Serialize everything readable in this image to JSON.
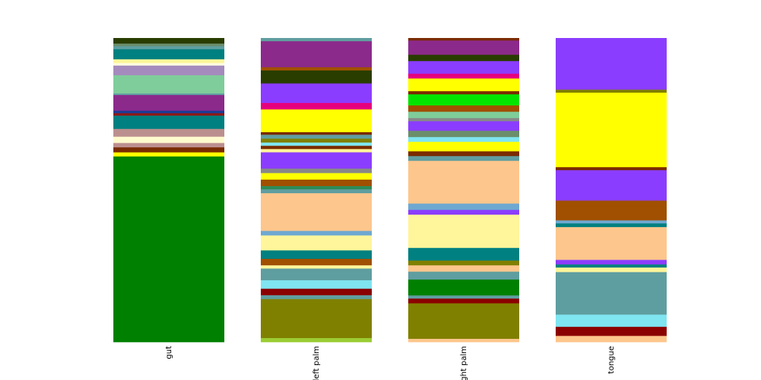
{
  "chart_data": {
    "type": "bar",
    "stacked": true,
    "normalized": true,
    "axes_visible": false,
    "grid": false,
    "legend": "none",
    "categories": [
      "gut",
      "left palm",
      "right palm",
      "tongue"
    ],
    "bars": [
      {
        "label": "gut",
        "segments": [
          {
            "color": "#2a3d00",
            "value": 0.018
          },
          {
            "color": "#6b8e6b",
            "value": 0.008
          },
          {
            "color": "#5f9ea0",
            "value": 0.01
          },
          {
            "color": "#008080",
            "value": 0.032
          },
          {
            "color": "#fff59a",
            "value": 0.012
          },
          {
            "color": "#fdfde0",
            "value": 0.008
          },
          {
            "color": "#a58bbd",
            "value": 0.031
          },
          {
            "color": "#7fcd9a",
            "value": 0.058
          },
          {
            "color": "#5f9ea0",
            "value": 0.005
          },
          {
            "color": "#8b2a8b",
            "value": 0.05
          },
          {
            "color": "#1f3a93",
            "value": 0.008
          },
          {
            "color": "#8b1a1a",
            "value": 0.008
          },
          {
            "color": "#008080",
            "value": 0.042
          },
          {
            "color": "#bc8f8f",
            "value": 0.025
          },
          {
            "color": "#fffacd",
            "value": 0.02
          },
          {
            "color": "#bc8f8f",
            "value": 0.014
          },
          {
            "color": "#7a2b00",
            "value": 0.016
          },
          {
            "color": "#ffff00",
            "value": 0.013
          },
          {
            "color": "#008000",
            "value": 0.592
          }
        ]
      },
      {
        "label": "left palm",
        "segments": [
          {
            "color": "#5f9ea0",
            "value": 0.01
          },
          {
            "color": "#8b2a8b",
            "value": 0.08
          },
          {
            "color": "#a05000",
            "value": 0.01
          },
          {
            "color": "#2a3d00",
            "value": 0.04
          },
          {
            "color": "#8b3dff",
            "value": 0.06
          },
          {
            "color": "#e6007e",
            "value": 0.02
          },
          {
            "color": "#ffff00",
            "value": 0.07
          },
          {
            "color": "#7a2b00",
            "value": 0.008
          },
          {
            "color": "#5f9ea0",
            "value": 0.012
          },
          {
            "color": "#808000",
            "value": 0.012
          },
          {
            "color": "#7fe5f0",
            "value": 0.01
          },
          {
            "color": "#7a2b00",
            "value": 0.01
          },
          {
            "color": "#fff59a",
            "value": 0.01
          },
          {
            "color": "#8b3dff",
            "value": 0.05
          },
          {
            "color": "#888888",
            "value": 0.014
          },
          {
            "color": "#ffff00",
            "value": 0.02
          },
          {
            "color": "#a05000",
            "value": 0.02
          },
          {
            "color": "#2e8b57",
            "value": 0.01
          },
          {
            "color": "#5f9ea0",
            "value": 0.012
          },
          {
            "color": "#fdc68c",
            "value": 0.116
          },
          {
            "color": "#6ea8d0",
            "value": 0.014
          },
          {
            "color": "#fff59a",
            "value": 0.046
          },
          {
            "color": "#008080",
            "value": 0.026
          },
          {
            "color": "#a05000",
            "value": 0.02
          },
          {
            "color": "#fff59a",
            "value": 0.01
          },
          {
            "color": "#5f9ea0",
            "value": 0.036
          },
          {
            "color": "#7fe5f0",
            "value": 0.026
          },
          {
            "color": "#8b0000",
            "value": 0.02
          },
          {
            "color": "#5f9ea0",
            "value": 0.012
          },
          {
            "color": "#808000",
            "value": 0.12
          },
          {
            "color": "#9acd32",
            "value": 0.012
          }
        ]
      },
      {
        "label": "right palm",
        "segments": [
          {
            "color": "#7a2b00",
            "value": 0.008
          },
          {
            "color": "#8b2a8b",
            "value": 0.045
          },
          {
            "color": "#2a3d00",
            "value": 0.02
          },
          {
            "color": "#8b3dff",
            "value": 0.04
          },
          {
            "color": "#e6007e",
            "value": 0.015
          },
          {
            "color": "#ffff00",
            "value": 0.04
          },
          {
            "color": "#7a2b00",
            "value": 0.01
          },
          {
            "color": "#00e600",
            "value": 0.035
          },
          {
            "color": "#a05000",
            "value": 0.02
          },
          {
            "color": "#7fcd9a",
            "value": 0.02
          },
          {
            "color": "#888888",
            "value": 0.01
          },
          {
            "color": "#8b3dff",
            "value": 0.03
          },
          {
            "color": "#6b8e6b",
            "value": 0.02
          },
          {
            "color": "#7fe5f0",
            "value": 0.015
          },
          {
            "color": "#ffff00",
            "value": 0.03
          },
          {
            "color": "#7a2b00",
            "value": 0.015
          },
          {
            "color": "#5f9ea0",
            "value": 0.015
          },
          {
            "color": "#fdc68c",
            "value": 0.135
          },
          {
            "color": "#6ea8d0",
            "value": 0.02
          },
          {
            "color": "#8b3dff",
            "value": 0.015
          },
          {
            "color": "#fff59a",
            "value": 0.105
          },
          {
            "color": "#008080",
            "value": 0.04
          },
          {
            "color": "#808000",
            "value": 0.015
          },
          {
            "color": "#fdc68c",
            "value": 0.02
          },
          {
            "color": "#5f9ea0",
            "value": 0.025
          },
          {
            "color": "#008000",
            "value": 0.05
          },
          {
            "color": "#5f9ea0",
            "value": 0.01
          },
          {
            "color": "#8b0000",
            "value": 0.015
          },
          {
            "color": "#808000",
            "value": 0.112
          },
          {
            "color": "#fdc68c",
            "value": 0.01
          }
        ]
      },
      {
        "label": "tongue",
        "segments": [
          {
            "color": "#8b3dff",
            "value": 0.17
          },
          {
            "color": "#808000",
            "value": 0.01
          },
          {
            "color": "#ffff00",
            "value": 0.245
          },
          {
            "color": "#7a2b00",
            "value": 0.01
          },
          {
            "color": "#8b3dff",
            "value": 0.1
          },
          {
            "color": "#a05000",
            "value": 0.065
          },
          {
            "color": "#6ea8d0",
            "value": 0.01
          },
          {
            "color": "#008080",
            "value": 0.012
          },
          {
            "color": "#fdc68c",
            "value": 0.108
          },
          {
            "color": "#8b3dff",
            "value": 0.015
          },
          {
            "color": "#008080",
            "value": 0.01
          },
          {
            "color": "#fff59a",
            "value": 0.015
          },
          {
            "color": "#5f9ea0",
            "value": 0.14
          },
          {
            "color": "#7fe5f0",
            "value": 0.04
          },
          {
            "color": "#8b0000",
            "value": 0.03
          },
          {
            "color": "#fdc68c",
            "value": 0.02
          }
        ]
      }
    ]
  },
  "x_tick_labels": [
    "gut",
    "left palm",
    "right palm",
    "tongue"
  ]
}
